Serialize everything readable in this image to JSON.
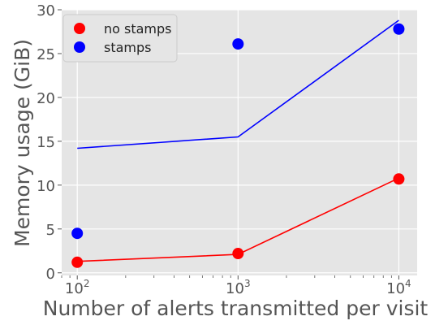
{
  "chart_data": {
    "type": "scatter",
    "title": "",
    "xlabel": "Number of alerts transmitted per visit",
    "ylabel": "Memory usage (GiB)",
    "xscale": "log",
    "xlim": [
      80,
      13000
    ],
    "ylim": [
      -0.3,
      30
    ],
    "x_ticks": [
      100,
      1000,
      10000
    ],
    "x_tick_labels": [
      {
        "base": "10",
        "exp": "2"
      },
      {
        "base": "10",
        "exp": "3"
      },
      {
        "base": "10",
        "exp": "4"
      }
    ],
    "y_ticks": [
      0,
      5,
      10,
      15,
      20,
      25,
      30
    ],
    "y_tick_labels": [
      "0",
      "5",
      "10",
      "15",
      "20",
      "25",
      "30"
    ],
    "grid": true,
    "legend_position": "top-left",
    "series": [
      {
        "name": "no stamps",
        "color": "#ff0000",
        "points": [
          {
            "x": 100,
            "y": 1.2
          },
          {
            "x": 1000,
            "y": 2.2
          },
          {
            "x": 10000,
            "y": 10.7
          }
        ],
        "fit_line": [
          {
            "x": 100,
            "y": 1.3
          },
          {
            "x": 1000,
            "y": 2.1
          },
          {
            "x": 10000,
            "y": 10.8
          }
        ]
      },
      {
        "name": "stamps",
        "color": "#0000ff",
        "points": [
          {
            "x": 100,
            "y": 4.5
          },
          {
            "x": 1000,
            "y": 26.1
          },
          {
            "x": 10000,
            "y": 27.8
          }
        ],
        "fit_line": [
          {
            "x": 100,
            "y": 14.2
          },
          {
            "x": 1000,
            "y": 15.5
          },
          {
            "x": 10000,
            "y": 28.8
          }
        ]
      }
    ]
  }
}
